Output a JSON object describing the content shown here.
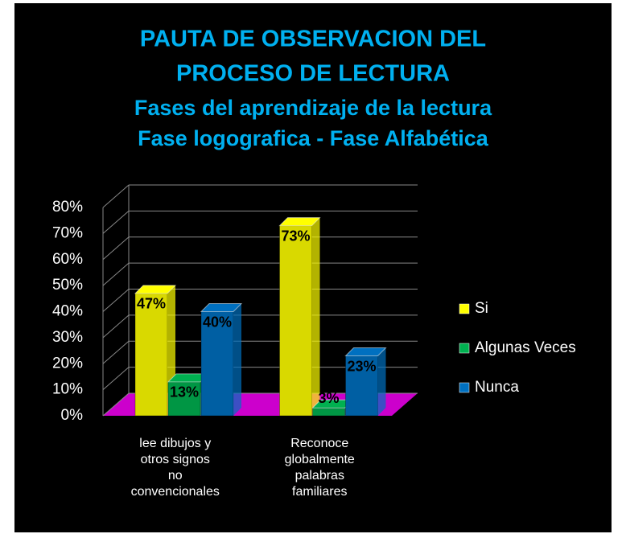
{
  "chart_data": {
    "type": "bar3d",
    "title": [
      "PAUTA DE OBSERVACION DEL",
      "PROCESO DE LECTURA"
    ],
    "subtitle": [
      "Fases del aprendizaje de la lectura",
      "Fase logografica - Fase Alfabética"
    ],
    "categories": [
      "lee dibujos y\notros signos\nno\nconvencionales",
      "Reconoce\nglobalmente\npalabras\nfamiliares"
    ],
    "series": [
      {
        "name": "Si",
        "color": "#ffff00",
        "values": [
          47,
          73
        ],
        "value_labels": [
          "47%",
          "73%"
        ]
      },
      {
        "name": "Algunas Veces",
        "color": "#00b050",
        "values": [
          13,
          3
        ],
        "value_labels": [
          "13%",
          "3%"
        ]
      },
      {
        "name": "Nunca",
        "color": "#0070c0",
        "values": [
          40,
          23
        ],
        "value_labels": [
          "40%",
          "23%"
        ]
      }
    ],
    "ylim": [
      0,
      80
    ],
    "yticks": [
      {
        "value": 0,
        "label": "0%"
      },
      {
        "value": 10,
        "label": "10%"
      },
      {
        "value": 20,
        "label": "20%"
      },
      {
        "value": 30,
        "label": "30%"
      },
      {
        "value": 40,
        "label": "40%"
      },
      {
        "value": 50,
        "label": "50%"
      },
      {
        "value": 60,
        "label": "60%"
      },
      {
        "value": 70,
        "label": "70%"
      },
      {
        "value": 80,
        "label": "80%"
      }
    ],
    "grid": true,
    "legend": "right",
    "floor_color": "#cc00cc"
  }
}
